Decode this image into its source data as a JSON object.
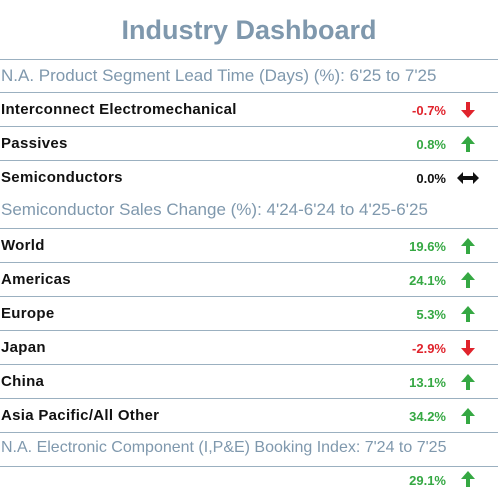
{
  "title": "Industry Dashboard",
  "colors": {
    "up": "#35a843",
    "down": "#e0232c",
    "flat": "#111111",
    "header": "#7f98ad"
  },
  "sections": [
    {
      "header": "N.A. Product Segment Lead Time (Days) (%): 6'25 to 7'25",
      "rows": [
        {
          "label": "Interconnect Electromechanical",
          "value": "-0.7%",
          "trend": "down-arrow-icon"
        },
        {
          "label": "Passives",
          "value": "0.8%",
          "trend": "up-arrow-icon"
        },
        {
          "label": "Semiconductors",
          "value": "0.0%",
          "trend": "left-right-arrow-icon"
        }
      ]
    },
    {
      "header": "Semiconductor Sales Change (%): 4'24-6'24 to 4'25-6'25",
      "rows": [
        {
          "label": "World",
          "value": "19.6%",
          "trend": "up-arrow-icon"
        },
        {
          "label": "Americas",
          "value": "24.1%",
          "trend": "up-arrow-icon"
        },
        {
          "label": "Europe",
          "value": "5.3%",
          "trend": "up-arrow-icon"
        },
        {
          "label": "Japan",
          "value": "-2.9%",
          "trend": "down-arrow-icon"
        },
        {
          "label": "China",
          "value": "13.1%",
          "trend": "up-arrow-icon"
        },
        {
          "label": "Asia Pacific/All Other",
          "value": "34.2%",
          "trend": "up-arrow-icon"
        }
      ]
    },
    {
      "header": "N.A. Electronic Component (I,P&E) Booking Index: 7'24 to 7'25",
      "rows": [
        {
          "label": "",
          "value": "29.1%",
          "trend": "up-arrow-icon"
        }
      ]
    }
  ]
}
